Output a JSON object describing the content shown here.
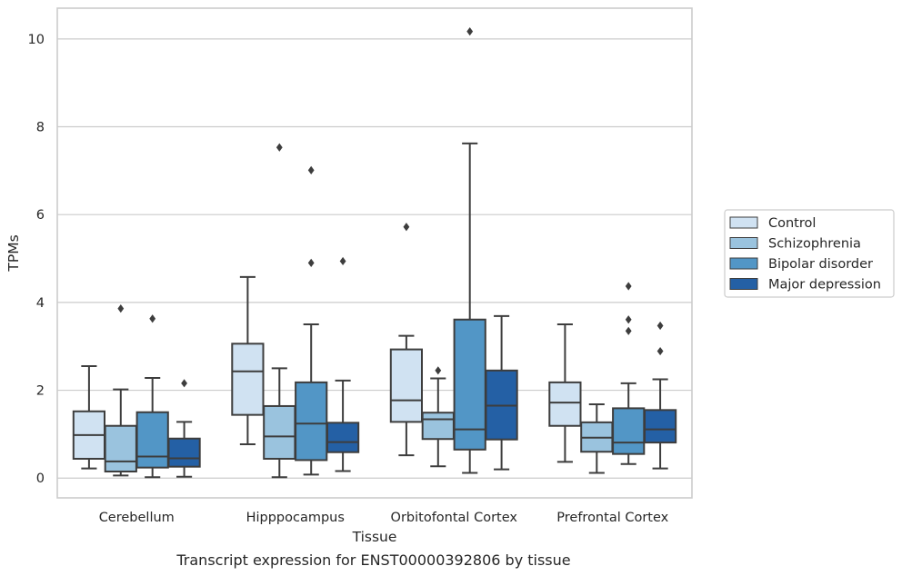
{
  "chart_data": {
    "type": "box",
    "caption": "Transcript expression for ENST00000392806 by tissue",
    "xlabel": "Tissue",
    "ylabel": "TPMs",
    "ylim": [
      -0.45,
      10.7
    ],
    "yticks": [
      0,
      2,
      4,
      6,
      8,
      10
    ],
    "grid": "horizontal",
    "legend_position": "right",
    "categories": [
      "Cerebellum",
      "Hipppocampus",
      "Orbitofontal Cortex",
      "Prefrontal Cortex"
    ],
    "series": [
      {
        "name": "Control",
        "color": "#d0e2f2",
        "boxes": [
          {
            "whislo": 0.22,
            "q1": 0.44,
            "med": 0.98,
            "q3": 1.52,
            "whishi": 2.55,
            "fliers": []
          },
          {
            "whislo": 0.77,
            "q1": 1.44,
            "med": 2.43,
            "q3": 3.06,
            "whishi": 4.58,
            "fliers": []
          },
          {
            "whislo": 0.52,
            "q1": 1.28,
            "med": 1.77,
            "q3": 2.93,
            "whishi": 3.24,
            "fliers": [
              5.72
            ]
          },
          {
            "whislo": 0.37,
            "q1": 1.19,
            "med": 1.72,
            "q3": 2.18,
            "whishi": 3.5,
            "fliers": []
          }
        ]
      },
      {
        "name": "Schizophrenia",
        "color": "#9ac3de",
        "boxes": [
          {
            "whislo": 0.06,
            "q1": 0.15,
            "med": 0.38,
            "q3": 1.19,
            "whishi": 2.02,
            "fliers": [
              3.86
            ]
          },
          {
            "whislo": 0.02,
            "q1": 0.44,
            "med": 0.95,
            "q3": 1.64,
            "whishi": 2.5,
            "fliers": [
              7.53
            ]
          },
          {
            "whislo": 0.27,
            "q1": 0.89,
            "med": 1.34,
            "q3": 1.49,
            "whishi": 2.27,
            "fliers": [
              2.45
            ]
          },
          {
            "whislo": 0.12,
            "q1": 0.6,
            "med": 0.92,
            "q3": 1.27,
            "whishi": 1.68,
            "fliers": []
          }
        ]
      },
      {
        "name": "Bipolar disorder",
        "color": "#5296c6",
        "boxes": [
          {
            "whislo": 0.02,
            "q1": 0.24,
            "med": 0.49,
            "q3": 1.5,
            "whishi": 2.28,
            "fliers": [
              3.63
            ]
          },
          {
            "whislo": 0.08,
            "q1": 0.41,
            "med": 1.24,
            "q3": 2.18,
            "whishi": 3.5,
            "fliers": [
              7.01,
              4.9
            ]
          },
          {
            "whislo": 0.12,
            "q1": 0.65,
            "med": 1.11,
            "q3": 3.61,
            "whishi": 7.62,
            "fliers": [
              10.17
            ]
          },
          {
            "whislo": 0.32,
            "q1": 0.55,
            "med": 0.81,
            "q3": 1.59,
            "whishi": 2.16,
            "fliers": [
              3.61,
              3.35,
              4.37
            ]
          }
        ]
      },
      {
        "name": "Major depression",
        "color": "#2460a5",
        "boxes": [
          {
            "whislo": 0.03,
            "q1": 0.26,
            "med": 0.45,
            "q3": 0.9,
            "whishi": 1.28,
            "fliers": [
              2.16
            ]
          },
          {
            "whislo": 0.16,
            "q1": 0.59,
            "med": 0.82,
            "q3": 1.26,
            "whishi": 2.22,
            "fliers": [
              4.94
            ]
          },
          {
            "whislo": 0.2,
            "q1": 0.88,
            "med": 1.65,
            "q3": 2.45,
            "whishi": 3.69,
            "fliers": []
          },
          {
            "whislo": 0.22,
            "q1": 0.81,
            "med": 1.11,
            "q3": 1.55,
            "whishi": 2.25,
            "fliers": [
              3.47,
              2.89
            ]
          }
        ]
      }
    ]
  }
}
